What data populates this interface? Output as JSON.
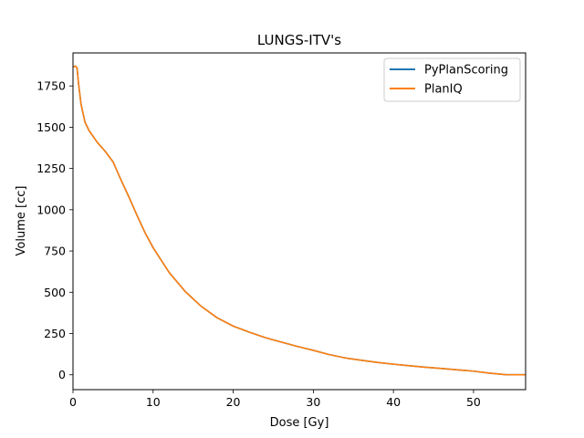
{
  "chart_data": {
    "type": "line",
    "title": "LUNGS-ITV's",
    "xlabel": "Dose [Gy]",
    "ylabel": "Volume [cc]",
    "xlim": [
      0,
      56.5
    ],
    "ylim": [
      -90,
      1950
    ],
    "xticks": [
      0,
      10,
      20,
      30,
      40,
      50
    ],
    "yticks": [
      0,
      250,
      500,
      750,
      1000,
      1250,
      1500,
      1750
    ],
    "grid": false,
    "legend_position": "top-right",
    "series": [
      {
        "name": "PyPlanScoring",
        "color": "#1f77b4",
        "x": [
          0,
          0.3,
          0.5,
          0.7,
          1.0,
          1.5,
          2,
          3,
          4,
          5,
          6,
          7,
          8,
          9,
          10,
          12,
          14,
          16,
          18,
          20,
          22,
          24,
          26,
          28,
          30,
          32,
          34,
          36,
          38,
          40,
          42,
          44,
          46,
          48,
          50,
          52,
          54,
          55,
          56.5
        ],
        "y": [
          1865,
          1870,
          1860,
          1760,
          1640,
          1530,
          1480,
          1410,
          1355,
          1290,
          1180,
          1075,
          965,
          860,
          770,
          620,
          505,
          415,
          345,
          295,
          258,
          225,
          198,
          172,
          148,
          122,
          102,
          88,
          75,
          64,
          55,
          46,
          38,
          30,
          22,
          10,
          1,
          0,
          0
        ]
      },
      {
        "name": "PlanIQ",
        "color": "#ff7f0e",
        "x": [
          0,
          0.3,
          0.5,
          0.7,
          1.0,
          1.5,
          2,
          3,
          4,
          5,
          6,
          7,
          8,
          9,
          10,
          12,
          14,
          16,
          18,
          20,
          22,
          24,
          26,
          28,
          30,
          32,
          34,
          36,
          38,
          40,
          42,
          44,
          46,
          48,
          50,
          52,
          54,
          55,
          56.5
        ],
        "y": [
          1865,
          1870,
          1860,
          1760,
          1640,
          1530,
          1480,
          1410,
          1355,
          1290,
          1180,
          1075,
          965,
          860,
          770,
          620,
          505,
          415,
          345,
          295,
          258,
          225,
          198,
          172,
          148,
          122,
          102,
          88,
          75,
          64,
          55,
          46,
          38,
          30,
          22,
          10,
          1,
          0,
          0
        ]
      }
    ]
  }
}
